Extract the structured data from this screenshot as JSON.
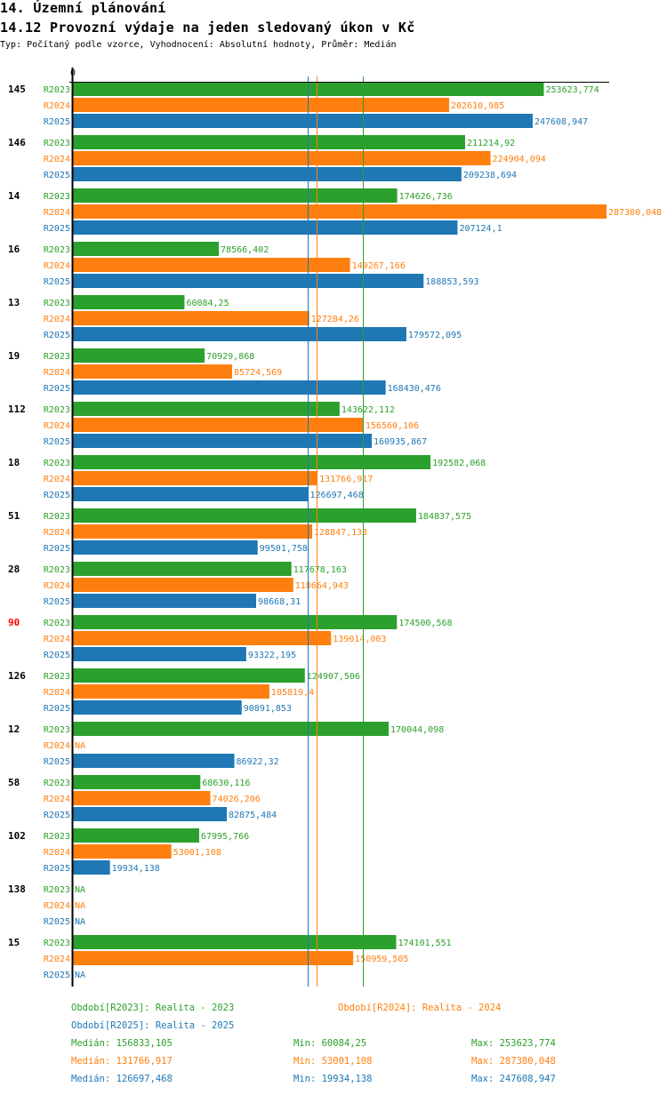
{
  "header": {
    "title": "14. Územní plánování",
    "subtitle": "14.12 Provozní výdaje na jeden sledovaný úkon v Kč",
    "description": "Typ: Počítaný podle vzorce, Vyhodnocení: Absolutní hodnoty, Průměr: Medián"
  },
  "colors": {
    "R2023": "#2ca02c",
    "R2024": "#ff7f0e",
    "R2025": "#1f77b4",
    "highlight": "#ff0000",
    "axis": "#000000"
  },
  "chart_data": {
    "type": "bar",
    "orientation": "horizontal",
    "title": "14.12 Provozní výdaje na jeden sledovaný úkon v Kč",
    "xlabel": "",
    "ylabel": "",
    "x_tick_labels": [
      "0"
    ],
    "xlim": [
      0,
      287380.048
    ],
    "grid": false,
    "legend_position": "bottom",
    "categories": [
      "145",
      "146",
      "14",
      "16",
      "13",
      "19",
      "112",
      "18",
      "51",
      "28",
      "90",
      "126",
      "12",
      "58",
      "102",
      "138",
      "15"
    ],
    "highlighted_category": "90",
    "series": [
      {
        "name": "R2023",
        "label": "Období[R2023]: Realita - 2023",
        "values": [
          253623.774,
          211214.92,
          174626.736,
          78566.402,
          60084.25,
          70929.868,
          143622.112,
          192582.068,
          184837.575,
          117678.163,
          174500.568,
          124907.506,
          170044.098,
          68630.116,
          67995.766,
          null,
          174101.551
        ],
        "labels": [
          "253623,774",
          "211214,92",
          "174626,736",
          "78566,402",
          "60084,25",
          "70929,868",
          "143622,112",
          "192582,068",
          "184837,575",
          "117678,163",
          "174500,568",
          "124907,506",
          "170044,098",
          "68630,116",
          "67995,766",
          "NA",
          "174101,551"
        ],
        "median": 156833.105,
        "min": 60084.25,
        "max": 253623.774
      },
      {
        "name": "R2024",
        "label": "Období[R2024]: Realita - 2024",
        "values": [
          202610.985,
          224904.094,
          287380.048,
          149267.166,
          127284.26,
          85724.569,
          156560.106,
          131766.917,
          128847.133,
          118664.943,
          139014.003,
          105819.4,
          null,
          74026.206,
          53001.108,
          null,
          150959.505
        ],
        "labels": [
          "202610,985",
          "224904,094",
          "287380,048",
          "149267,166",
          "127284,26",
          "85724,569",
          "156560,106",
          "131766,917",
          "128847,133",
          "118664,943",
          "139014,003",
          "105819,4",
          "NA",
          "74026,206",
          "53001,108",
          "NA",
          "150959,505"
        ],
        "median": 131766.917,
        "min": 53001.108,
        "max": 287380.048
      },
      {
        "name": "R2025",
        "label": "Období[R2025]: Realita - 2025",
        "values": [
          247608.947,
          209238.694,
          207124.1,
          188853.593,
          179572.095,
          168430.476,
          160935.867,
          126697.468,
          99501.758,
          98668.31,
          93322.195,
          90891.853,
          86922.32,
          82875.484,
          19934.138,
          null,
          null
        ],
        "labels": [
          "247608,947",
          "209238,694",
          "207124,1",
          "188853,593",
          "179572,095",
          "168430,476",
          "160935,867",
          "126697,468",
          "99501,758",
          "98668,31",
          "93322,195",
          "90891,853",
          "86922,32",
          "82875,484",
          "19934,138",
          "NA",
          "NA"
        ],
        "median": 126697.468,
        "min": 19934.138,
        "max": 247608.947
      }
    ]
  },
  "footer": {
    "stats_rows": [
      {
        "series": "R2023",
        "median": "Medián: 156833,105",
        "min": "Min: 60084,25",
        "max": "Max: 253623,774"
      },
      {
        "series": "R2024",
        "median": "Medián: 131766,917",
        "min": "Min: 53001,108",
        "max": "Max: 287380,048"
      },
      {
        "series": "R2025",
        "median": "Medián: 126697,468",
        "min": "Min: 19934,138",
        "max": "Max: 247608,947"
      }
    ]
  }
}
